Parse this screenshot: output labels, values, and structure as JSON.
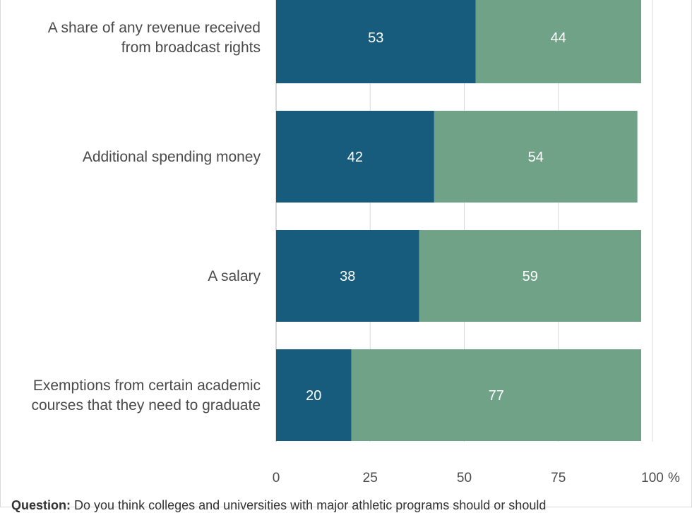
{
  "chart_data": {
    "type": "bar",
    "orientation": "horizontal",
    "stacked": true,
    "categories": [
      [
        "A share of any revenue received",
        "from broadcast rights"
      ],
      [
        "Additional spending money"
      ],
      [
        "A salary"
      ],
      [
        "Exemptions from certain academic",
        "courses that they need to graduate"
      ]
    ],
    "series": [
      {
        "values": [
          53,
          42,
          38,
          20
        ],
        "color": "#175c7d"
      },
      {
        "values": [
          44,
          54,
          59,
          77
        ],
        "color": "#70a287"
      }
    ],
    "xlim": [
      0,
      100
    ],
    "xticks": [
      0,
      25,
      50,
      75,
      100
    ],
    "xtick_labels": [
      "0",
      "25",
      "50",
      "75",
      "100"
    ],
    "x_unit": "%",
    "grid": true
  },
  "footer": {
    "question_label": "Question:",
    "question_text": "Do you think colleges and universities with major athletic programs should or should"
  }
}
